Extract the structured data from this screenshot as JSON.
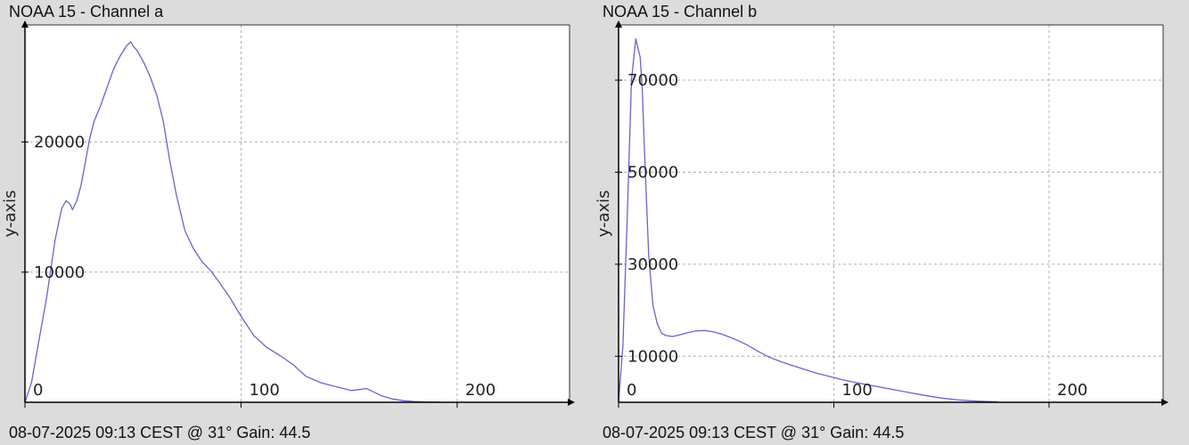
{
  "chart_data": [
    {
      "type": "line",
      "title": "NOAA 15 - Channel a",
      "footer": "08-07-2025 09:13 CEST @ 31° Gain: 44.5",
      "xlabel": "",
      "ylabel": "y-axis",
      "xlim": [
        0,
        252
      ],
      "ylim": [
        0,
        29000
      ],
      "xticks": [
        0,
        100,
        200
      ],
      "yticks": [
        10000,
        20000
      ],
      "grid": true,
      "series_color": "#6666cc",
      "series": [
        {
          "x": [
            0,
            3,
            6,
            10,
            14,
            17,
            19,
            21,
            22,
            24,
            26,
            28,
            30,
            32,
            35,
            38,
            41,
            44,
            47,
            49,
            50,
            52,
            55,
            58,
            61,
            64,
            67,
            70,
            74,
            78,
            82,
            86,
            90,
            95,
            100,
            106,
            112,
            118,
            124,
            130,
            137,
            144,
            151,
            158,
            165,
            170,
            175,
            180,
            185,
            192
          ],
          "y": [
            0,
            1500,
            4300,
            8000,
            12500,
            14900,
            15500,
            15200,
            14800,
            15500,
            16700,
            18500,
            20300,
            21600,
            22800,
            24200,
            25600,
            26600,
            27400,
            27700,
            27400,
            27000,
            26100,
            25000,
            23600,
            21600,
            18600,
            16000,
            13200,
            11800,
            10800,
            10100,
            9200,
            8000,
            6600,
            5100,
            4200,
            3600,
            2900,
            2000,
            1500,
            1200,
            900,
            1050,
            500,
            250,
            120,
            60,
            30,
            10
          ]
        }
      ]
    },
    {
      "type": "line",
      "title": "NOAA 15 - Channel b",
      "footer": "08-07-2025 09:13 CEST @ 31° Gain: 44.5",
      "xlabel": "",
      "ylabel": "y-axis",
      "xlim": [
        0,
        253
      ],
      "ylim": [
        0,
        82000
      ],
      "xticks": [
        0,
        100,
        200
      ],
      "yticks": [
        10000,
        30000,
        50000,
        70000
      ],
      "grid": true,
      "series_color": "#6666cc",
      "series": [
        {
          "x": [
            0,
            2,
            4,
            6,
            8,
            10,
            11,
            12,
            14,
            16,
            18,
            20,
            22,
            25,
            28,
            32,
            36,
            40,
            44,
            48,
            52,
            56,
            60,
            65,
            70,
            75,
            80,
            86,
            92,
            98,
            104,
            110,
            118,
            126,
            134,
            142,
            150,
            158,
            166,
            176
          ],
          "y": [
            0,
            12000,
            40000,
            70000,
            79000,
            75000,
            68000,
            55000,
            32000,
            21000,
            17000,
            15000,
            14500,
            14300,
            14600,
            15100,
            15500,
            15600,
            15300,
            14800,
            14100,
            13300,
            12400,
            11000,
            9800,
            8900,
            8100,
            7200,
            6300,
            5600,
            4900,
            4300,
            3600,
            2900,
            2200,
            1500,
            900,
            500,
            250,
            100
          ]
        }
      ]
    }
  ]
}
